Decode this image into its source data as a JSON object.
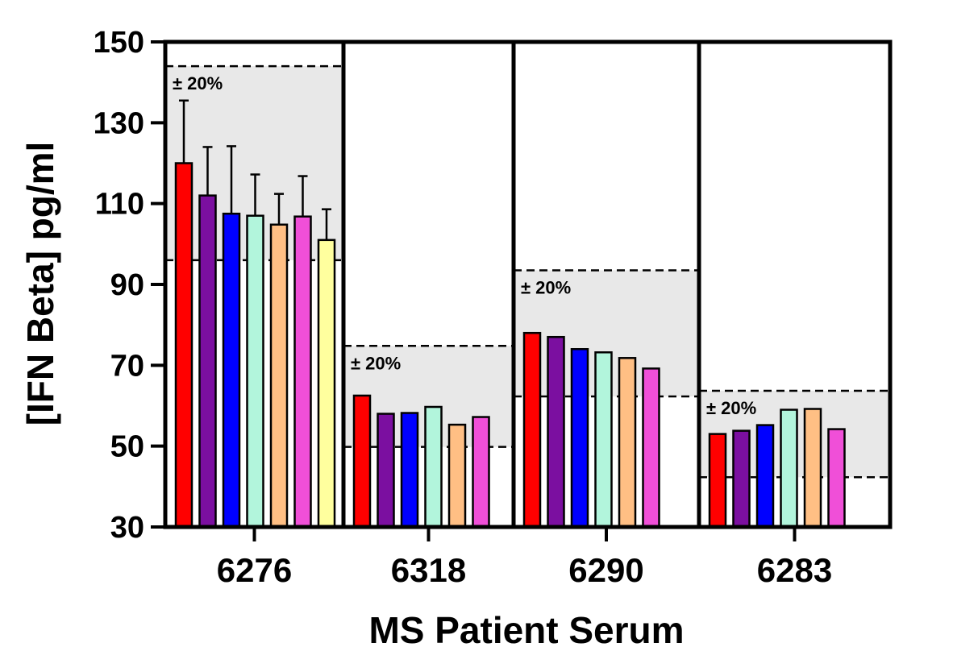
{
  "chart_data": {
    "type": "bar",
    "xlabel": "MS Patient Serum",
    "ylabel": "[IFN Beta] pg/ml",
    "ylim": [
      30,
      150
    ],
    "yticks": [
      "30",
      "50",
      "70",
      "90",
      "110",
      "130",
      "150"
    ],
    "grid": false,
    "legend": "none",
    "series_colors": [
      "#ff0000",
      "#7b0fa0",
      "#0000ff",
      "#b2f5dc",
      "#ffbf84",
      "#f04fd8",
      "#ffff9e"
    ],
    "groups": [
      {
        "category": "6276",
        "values": [
          120,
          112,
          107.5,
          107,
          104.8,
          106.8,
          101
        ],
        "error_upper": [
          135.5,
          124,
          124.2,
          117.2,
          112.4,
          116.8,
          108.6
        ],
        "band": {
          "lower": 96,
          "upper": 144,
          "label": "± 20%"
        }
      },
      {
        "category": "6318",
        "values": [
          62.5,
          58,
          58.2,
          59.7,
          55.3,
          57.2
        ],
        "band": {
          "lower": 49.8,
          "upper": 74.8,
          "label": "± 20%"
        }
      },
      {
        "category": "6290",
        "values": [
          78,
          77,
          74,
          73.2,
          71.8,
          69.2
        ],
        "band": {
          "lower": 62.3,
          "upper": 93.5,
          "label": "± 20%"
        }
      },
      {
        "category": "6283",
        "values": [
          53,
          53.8,
          55.2,
          59,
          59.2,
          54.2
        ],
        "band": {
          "lower": 42.3,
          "upper": 63.7,
          "label": "± 20%"
        }
      }
    ]
  }
}
